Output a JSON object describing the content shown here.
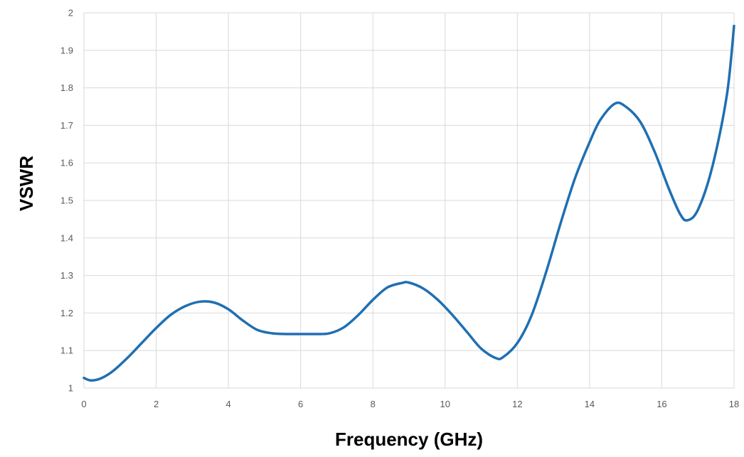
{
  "chart_data": {
    "type": "line",
    "title": "",
    "xlabel": "Frequency (GHz)",
    "ylabel": "VSWR",
    "xlim": [
      0,
      18
    ],
    "ylim": [
      1,
      2
    ],
    "x_ticks": [
      0,
      2,
      4,
      6,
      8,
      10,
      12,
      14,
      16,
      18
    ],
    "y_ticks": [
      1,
      1.1,
      1.2,
      1.3,
      1.4,
      1.5,
      1.6,
      1.7,
      1.8,
      1.9,
      2
    ],
    "x_tick_labels": [
      "0",
      "2",
      "4",
      "6",
      "8",
      "10",
      "12",
      "14",
      "16",
      "18"
    ],
    "y_tick_labels": [
      "1",
      "1.1",
      "1.2",
      "1.3",
      "1.4",
      "1.5",
      "1.6",
      "1.7",
      "1.8",
      "1.9",
      "2"
    ],
    "grid": true,
    "legend": "none",
    "series": [
      {
        "color": "#1F6FB2",
        "x": [
          0,
          0.15,
          0.3,
          0.5,
          0.8,
          1.2,
          1.6,
          2.0,
          2.4,
          2.8,
          3.2,
          3.6,
          4.0,
          4.4,
          4.8,
          5.2,
          5.6,
          6.0,
          6.4,
          6.8,
          7.2,
          7.6,
          8.0,
          8.4,
          8.8,
          9.0,
          9.4,
          9.8,
          10.2,
          10.6,
          11.0,
          11.4,
          11.6,
          12.0,
          12.4,
          12.8,
          13.2,
          13.6,
          14.0,
          14.3,
          14.7,
          15.0,
          15.4,
          15.8,
          16.2,
          16.5,
          16.7,
          17.0,
          17.4,
          17.8,
          18.0
        ],
        "y": [
          1.027,
          1.021,
          1.021,
          1.027,
          1.045,
          1.08,
          1.12,
          1.16,
          1.195,
          1.218,
          1.23,
          1.228,
          1.21,
          1.18,
          1.155,
          1.146,
          1.144,
          1.144,
          1.144,
          1.146,
          1.162,
          1.195,
          1.235,
          1.268,
          1.28,
          1.281,
          1.265,
          1.235,
          1.195,
          1.15,
          1.105,
          1.08,
          1.082,
          1.12,
          1.195,
          1.31,
          1.44,
          1.56,
          1.655,
          1.715,
          1.758,
          1.75,
          1.71,
          1.63,
          1.53,
          1.465,
          1.447,
          1.475,
          1.59,
          1.78,
          1.965
        ]
      }
    ]
  }
}
